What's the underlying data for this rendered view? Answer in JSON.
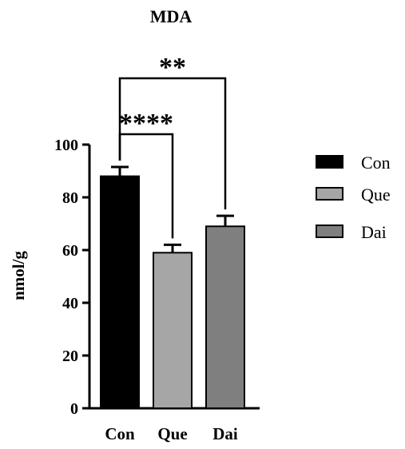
{
  "chart_data": {
    "type": "bar",
    "title": "MDA",
    "xlabel": "",
    "ylabel": "nmol/g",
    "ylim": [
      0,
      100
    ],
    "yticks": [
      0,
      20,
      40,
      60,
      80,
      100
    ],
    "categories": [
      "Con",
      "Que",
      "Dai"
    ],
    "values": [
      88,
      59,
      69
    ],
    "errors": [
      3.5,
      3,
      4
    ],
    "colors": [
      "#000000",
      "#a6a6a6",
      "#7f7f7f"
    ],
    "grid": false,
    "legend": {
      "position": "right",
      "entries": [
        {
          "label": "Con",
          "color": "#000000"
        },
        {
          "label": "Que",
          "color": "#a6a6a6"
        },
        {
          "label": "Dai",
          "color": "#7f7f7f"
        }
      ]
    },
    "significance": [
      {
        "from": "Con",
        "to": "Que",
        "label": "****"
      },
      {
        "from": "Con",
        "to": "Dai",
        "label": "**"
      }
    ]
  }
}
